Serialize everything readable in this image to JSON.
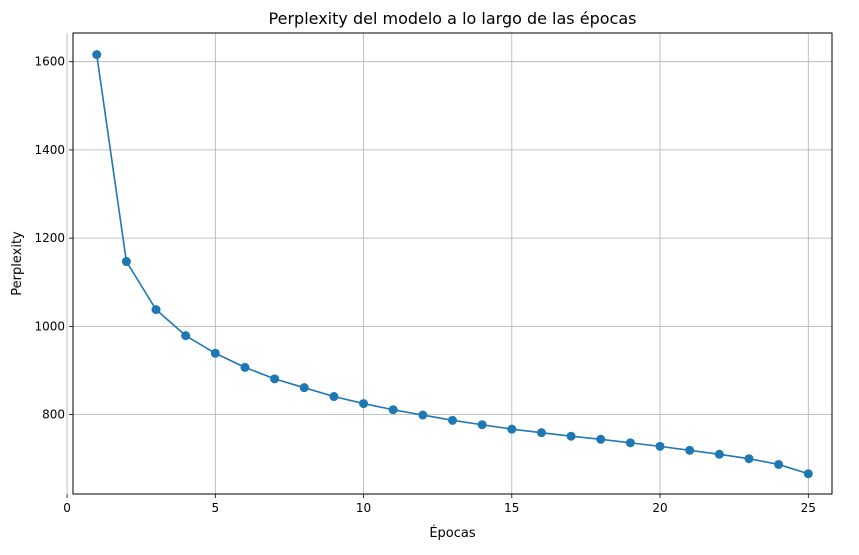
{
  "chart_data": {
    "type": "line",
    "title": "Perplexity del modelo a lo largo de las épocas",
    "xlabel": "Épocas",
    "ylabel": "Perplexity",
    "grid": true,
    "xlim": [
      0.2,
      25.8
    ],
    "ylim": [
      620,
      1665
    ],
    "xticks": [
      0,
      5,
      10,
      15,
      20,
      25
    ],
    "yticks": [
      800,
      1000,
      1200,
      1400,
      1600
    ],
    "series": [
      {
        "color": "#1f77b4",
        "marker": "circle",
        "x": [
          1,
          2,
          3,
          4,
          5,
          6,
          7,
          8,
          9,
          10,
          11,
          12,
          13,
          14,
          15,
          16,
          17,
          18,
          19,
          20,
          21,
          22,
          23,
          24,
          25
        ],
        "y": [
          1616,
          1147,
          1038,
          979,
          939,
          907,
          881,
          861,
          841,
          825,
          811,
          799,
          787,
          777,
          767,
          759,
          751,
          744,
          736,
          728,
          719,
          710,
          700,
          687,
          666
        ]
      }
    ]
  }
}
